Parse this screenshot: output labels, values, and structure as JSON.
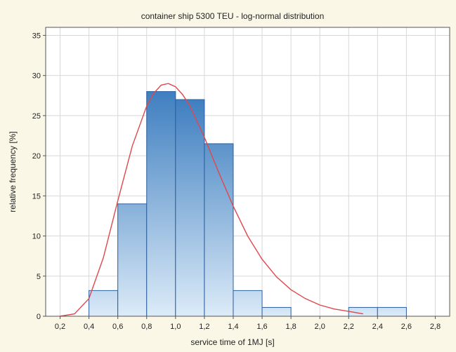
{
  "chart_data": {
    "type": "bar",
    "subtype": "histogram",
    "title": "container ship 5300 TEU - log-normal distribution",
    "xlabel": "service time of 1MJ [s]",
    "ylabel": "relative frequency [%]",
    "xlim": [
      0.1,
      2.9
    ],
    "ylim": [
      0,
      36
    ],
    "xticks": [
      "0,2",
      "0,4",
      "0,6",
      "0,8",
      "1,0",
      "1,2",
      "1,4",
      "1,6",
      "1,8",
      "2,0",
      "2,2",
      "2,4",
      "2,6",
      "2,8"
    ],
    "xtick_values": [
      0.2,
      0.4,
      0.6,
      0.8,
      1.0,
      1.2,
      1.4,
      1.6,
      1.8,
      2.0,
      2.2,
      2.4,
      2.6,
      2.8
    ],
    "yticks": [
      "0",
      "5",
      "10",
      "15",
      "20",
      "25",
      "30",
      "35"
    ],
    "ytick_values": [
      0,
      5,
      10,
      15,
      20,
      25,
      30,
      35
    ],
    "grid": true,
    "bin_edges": [
      0.4,
      0.6,
      0.8,
      1.0,
      1.2,
      1.4,
      1.6,
      1.8,
      2.0,
      2.2,
      2.4,
      2.6
    ],
    "values": [
      3.2,
      14.0,
      28.0,
      27.0,
      21.5,
      3.2,
      1.1,
      0,
      0,
      1.1,
      1.1
    ],
    "fit_curve": {
      "type": "log-normal",
      "peak_x": 0.95,
      "peak_y": 29.0,
      "x": [
        0.2,
        0.3,
        0.4,
        0.5,
        0.6,
        0.7,
        0.8,
        0.85,
        0.9,
        0.95,
        1.0,
        1.05,
        1.1,
        1.2,
        1.3,
        1.4,
        1.5,
        1.6,
        1.7,
        1.8,
        1.9,
        2.0,
        2.1,
        2.2,
        2.3
      ],
      "y": [
        0.0,
        0.3,
        2.2,
        7.3,
        14.4,
        21.2,
        26.2,
        27.8,
        28.8,
        29.0,
        28.6,
        27.6,
        26.2,
        22.3,
        17.9,
        13.7,
        10.0,
        7.1,
        4.9,
        3.3,
        2.2,
        1.4,
        0.9,
        0.6,
        0.3
      ]
    },
    "colors": {
      "bar_top": "#3f7fc0",
      "bar_bottom": "#dcebf8",
      "bar_stroke": "#2c5f9e",
      "fit_line": "#e0474c",
      "grid": "#d8d8d8",
      "plot_bg": "#ffffff",
      "page_bg": "#fbf7e6"
    }
  }
}
